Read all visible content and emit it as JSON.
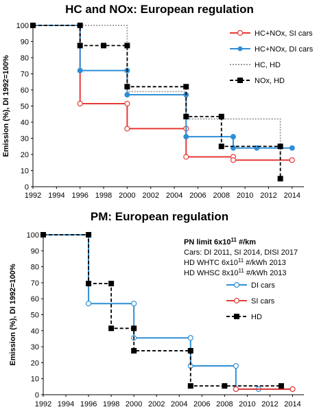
{
  "chart_data": [
    {
      "type": "line",
      "step": true,
      "title": "HC and NOx: European regulation",
      "ylabel": "Emission (%), DI 1992=100%",
      "xlabel": "",
      "xlim": [
        1992,
        2015
      ],
      "ylim": [
        0,
        100
      ],
      "x_ticks": [
        "1992",
        "1994",
        "1996",
        "1998",
        "2000",
        "2002",
        "2004",
        "2006",
        "2008",
        "2010",
        "2012",
        "2014"
      ],
      "y_ticks": [
        "0",
        "10",
        "20",
        "30",
        "40",
        "50",
        "60",
        "70",
        "80",
        "90",
        "100"
      ],
      "legend_position": "top-right",
      "grid": false,
      "series": [
        {
          "name": "HC+NOx, SI cars",
          "color": "#e53935",
          "marker": "open-circle",
          "dash": "solid",
          "points": [
            [
              1992,
              100
            ],
            [
              1996,
              100
            ],
            [
              1996,
              51.5
            ],
            [
              2000,
              51.5
            ],
            [
              2000,
              36
            ],
            [
              2005,
              36
            ],
            [
              2005,
              18.5
            ],
            [
              2009,
              18.5
            ],
            [
              2009,
              16.5
            ],
            [
              2014,
              16.5
            ]
          ]
        },
        {
          "name": "HC+NOx, DI cars",
          "color": "#2f8fd6",
          "marker": "filled-circle",
          "dash": "solid",
          "points": [
            [
              1992,
              100
            ],
            [
              1996,
              100
            ],
            [
              1996,
              72
            ],
            [
              2000,
              72
            ],
            [
              2000,
              57
            ],
            [
              2005,
              57
            ],
            [
              2005,
              31
            ],
            [
              2009,
              31
            ],
            [
              2009,
              24
            ],
            [
              2011,
              24
            ],
            [
              2014,
              24
            ]
          ]
        },
        {
          "name": "HC, HD",
          "color": "#999999",
          "marker": "none",
          "dash": "dotted",
          "points": [
            [
              1992,
              100
            ],
            [
              2000,
              100
            ],
            [
              2000,
              59
            ],
            [
              2005,
              59
            ],
            [
              2005,
              42
            ],
            [
              2013,
              42
            ],
            [
              2013,
              15
            ]
          ]
        },
        {
          "name": "NOx, HD",
          "color": "#000000",
          "marker": "filled-square",
          "dash": "dashed",
          "points": [
            [
              1992,
              100
            ],
            [
              1996,
              100
            ],
            [
              1996,
              87.5
            ],
            [
              1998,
              87.5
            ],
            [
              2000,
              87.5
            ],
            [
              2000,
              62
            ],
            [
              2005,
              62
            ],
            [
              2005,
              43.5
            ],
            [
              2008,
              43.5
            ],
            [
              2008,
              25
            ],
            [
              2013,
              25
            ],
            [
              2013,
              5
            ]
          ]
        }
      ]
    },
    {
      "type": "line",
      "step": true,
      "title": "PM: European regulation",
      "ylabel": "Emission (%), DI 1992=100%",
      "xlabel": "",
      "xlim": [
        1992,
        2015
      ],
      "ylim": [
        0,
        100
      ],
      "x_ticks": [
        "1992",
        "1994",
        "1996",
        "1998",
        "2000",
        "2002",
        "2004",
        "2006",
        "2008",
        "2010",
        "2012",
        "2014"
      ],
      "y_ticks": [
        "0",
        "10",
        "20",
        "30",
        "40",
        "50",
        "60",
        "70",
        "80",
        "90",
        "100"
      ],
      "legend_position": "right-middle",
      "grid": false,
      "annotations": {
        "heading": "PN limit 6x10",
        "heading_sup": "11",
        "heading_unit": " #/km",
        "lines": [
          "Cars: DI 2011, SI 2014, DISI 2017",
          "HD WHTC 6x10",
          "HD WHSC 8x10"
        ],
        "line_sups": [
          "",
          "11",
          "11"
        ],
        "line_units": [
          "",
          " #/kWh 2013",
          " #/kWh 2013"
        ]
      },
      "series": [
        {
          "name": "DI cars",
          "color": "#2f8fd6",
          "marker": "open-circle",
          "dash": "solid",
          "points": [
            [
              1992,
              100
            ],
            [
              1996,
              100
            ],
            [
              1996,
              57
            ],
            [
              2000,
              57
            ],
            [
              2000,
              35.5
            ],
            [
              2005,
              35.5
            ],
            [
              2005,
              18
            ],
            [
              2009,
              18
            ],
            [
              2009,
              3.5
            ],
            [
              2011,
              3.5
            ],
            [
              2014,
              3.5
            ]
          ]
        },
        {
          "name": "SI cars",
          "color": "#e53935",
          "marker": "open-circle",
          "dash": "solid",
          "points": [
            [
              2009,
              3.5
            ],
            [
              2014,
              3.5
            ]
          ]
        },
        {
          "name": "HD",
          "color": "#000000",
          "marker": "filled-square",
          "dash": "dashed",
          "points": [
            [
              1992,
              100
            ],
            [
              1996,
              100
            ],
            [
              1996,
              69.5
            ],
            [
              1998,
              69.5
            ],
            [
              1998,
              41.5
            ],
            [
              2000,
              41.5
            ],
            [
              2000,
              27.5
            ],
            [
              2005,
              27.5
            ],
            [
              2005,
              5.5
            ],
            [
              2008,
              5.5
            ],
            [
              2013,
              5.5
            ]
          ]
        }
      ]
    }
  ]
}
